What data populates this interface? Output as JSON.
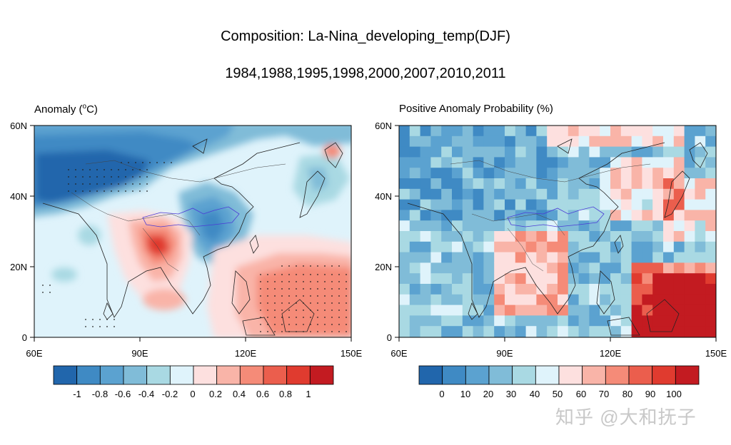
{
  "title": "Composition: La-Nina_developing_temp(DJF)",
  "years": "1984,1988,1995,1998,2000,2007,2010,2011",
  "left_panel": {
    "label": "Anomaly (",
    "unit_sup": "o",
    "label_end": "C)",
    "x_ticks": [
      "60E",
      "90E",
      "120E",
      "150E"
    ],
    "y_ticks": [
      "60N",
      "40N",
      "20N",
      "0"
    ],
    "colorbar_labels": [
      "-1",
      "-0.8",
      "-0.6",
      "-0.4",
      "-0.2",
      "0",
      "0.2",
      "0.4",
      "0.6",
      "0.8",
      "1"
    ]
  },
  "right_panel": {
    "label": "Positive Anomaly Probability (%)",
    "x_ticks": [
      "60E",
      "90E",
      "120E",
      "150E"
    ],
    "y_ticks": [
      "60N",
      "40N",
      "20N",
      "0"
    ],
    "colorbar_labels": [
      "0",
      "10",
      "20",
      "30",
      "40",
      "50",
      "60",
      "70",
      "80",
      "90",
      "100"
    ]
  },
  "palette": [
    "#2166ac",
    "#3f8ac4",
    "#5ba2d0",
    "#80bcd8",
    "#a9d9e3",
    "#dff3fb",
    "#fde0df",
    "#f9b4a8",
    "#f58b78",
    "#eb5e4d",
    "#e03b2f",
    "#c31b21"
  ],
  "watermark": "知乎 @大和抚子"
}
